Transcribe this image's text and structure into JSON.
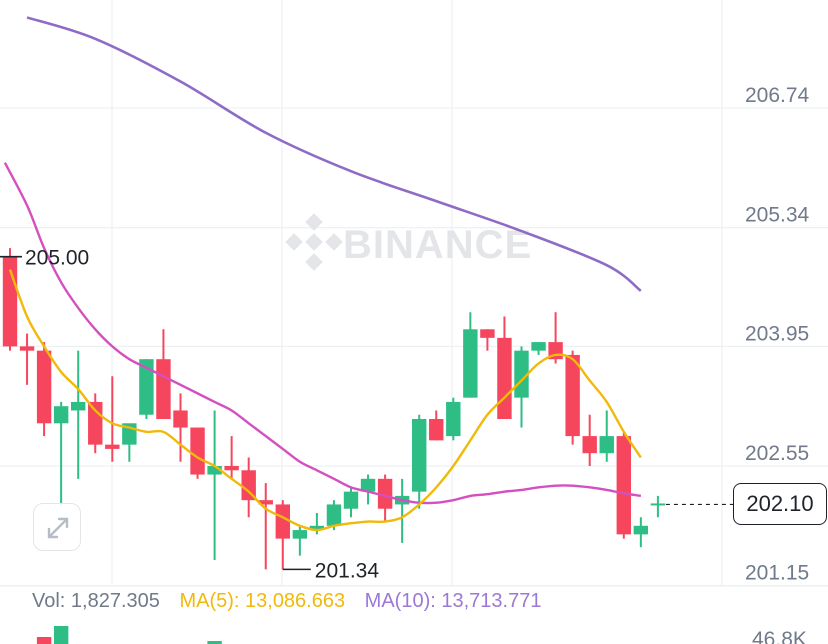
{
  "watermark": {
    "text": "BINANCE"
  },
  "price_axis": {
    "ticks": [
      "206.74",
      "205.34",
      "203.95",
      "202.55",
      "201.15"
    ],
    "volume_tick": "46.8K"
  },
  "annotations": {
    "high_label": "205.00",
    "low_label": "201.34"
  },
  "current_price": {
    "label": "202.10",
    "value": 202.1
  },
  "volume_bar": {
    "vol_label": "Vol: 1,827.305",
    "ma5_label": "MA(5): 13,086.663",
    "ma10_label": "MA(10): 13,713.771"
  },
  "colors": {
    "up": "#2ebd85",
    "down": "#f6465d",
    "ma_fast": "#f0b90b",
    "ma_mid": "#d44fc0",
    "ma_slow": "#8e6cc6",
    "grid": "#eef0f2",
    "vol_text": "#707a8a",
    "ma5_text": "#f0b90b",
    "ma10_text": "#9b78d6"
  },
  "icons": {
    "expand": "expand-icon",
    "logo": "binance-logo-icon"
  },
  "chart_data": {
    "type": "candlestick",
    "ylim": [
      201.0,
      207.6
    ],
    "yticks": [
      206.74,
      205.34,
      203.95,
      202.55,
      201.15
    ],
    "candles": [
      {
        "o": 205.0,
        "h": 205.1,
        "l": 203.9,
        "c": 203.95
      },
      {
        "o": 203.95,
        "h": 204.1,
        "l": 203.5,
        "c": 203.9
      },
      {
        "o": 203.9,
        "h": 204.0,
        "l": 202.9,
        "c": 203.05
      },
      {
        "o": 203.05,
        "h": 203.3,
        "l": 201.6,
        "c": 203.25
      },
      {
        "o": 203.2,
        "h": 203.9,
        "l": 202.4,
        "c": 203.3
      },
      {
        "o": 203.3,
        "h": 203.4,
        "l": 202.7,
        "c": 202.8
      },
      {
        "o": 202.8,
        "h": 203.6,
        "l": 202.6,
        "c": 202.75
      },
      {
        "o": 202.8,
        "h": 203.0,
        "l": 202.6,
        "c": 203.05
      },
      {
        "o": 203.15,
        "h": 203.8,
        "l": 203.1,
        "c": 203.8
      },
      {
        "o": 203.8,
        "h": 204.15,
        "l": 203.1,
        "c": 203.1
      },
      {
        "o": 203.2,
        "h": 203.4,
        "l": 202.6,
        "c": 203.0
      },
      {
        "o": 203.0,
        "h": 203.0,
        "l": 202.4,
        "c": 202.45
      },
      {
        "o": 202.45,
        "h": 203.2,
        "l": 201.45,
        "c": 202.55
      },
      {
        "o": 202.55,
        "h": 202.9,
        "l": 202.4,
        "c": 202.5
      },
      {
        "o": 202.5,
        "h": 202.65,
        "l": 201.95,
        "c": 202.15
      },
      {
        "o": 202.15,
        "h": 202.35,
        "l": 201.34,
        "c": 202.1
      },
      {
        "o": 202.1,
        "h": 202.15,
        "l": 201.34,
        "c": 201.7
      },
      {
        "o": 201.7,
        "h": 201.85,
        "l": 201.5,
        "c": 201.8
      },
      {
        "o": 201.8,
        "h": 202.0,
        "l": 201.75,
        "c": 201.85
      },
      {
        "o": 201.85,
        "h": 202.15,
        "l": 201.8,
        "c": 202.1
      },
      {
        "o": 202.05,
        "h": 202.3,
        "l": 201.95,
        "c": 202.25
      },
      {
        "o": 202.25,
        "h": 202.45,
        "l": 202.1,
        "c": 202.4
      },
      {
        "o": 202.4,
        "h": 202.45,
        "l": 201.9,
        "c": 202.05
      },
      {
        "o": 202.1,
        "h": 202.4,
        "l": 201.65,
        "c": 202.2
      },
      {
        "o": 202.25,
        "h": 203.15,
        "l": 202.05,
        "c": 203.1
      },
      {
        "o": 203.1,
        "h": 203.2,
        "l": 202.85,
        "c": 202.85
      },
      {
        "o": 202.9,
        "h": 203.35,
        "l": 202.85,
        "c": 203.3
      },
      {
        "o": 203.35,
        "h": 204.35,
        "l": 203.35,
        "c": 204.15
      },
      {
        "o": 204.15,
        "h": 204.15,
        "l": 203.9,
        "c": 204.05
      },
      {
        "o": 204.05,
        "h": 204.3,
        "l": 203.1,
        "c": 203.1
      },
      {
        "o": 203.35,
        "h": 203.95,
        "l": 203.0,
        "c": 203.9
      },
      {
        "o": 203.9,
        "h": 204.0,
        "l": 203.85,
        "c": 204.0
      },
      {
        "o": 204.0,
        "h": 204.35,
        "l": 203.75,
        "c": 203.8
      },
      {
        "o": 203.85,
        "h": 203.9,
        "l": 202.8,
        "c": 202.9
      },
      {
        "o": 202.9,
        "h": 203.15,
        "l": 202.55,
        "c": 202.7
      },
      {
        "o": 202.7,
        "h": 203.2,
        "l": 202.6,
        "c": 202.9
      },
      {
        "o": 202.9,
        "h": 202.95,
        "l": 201.7,
        "c": 201.75
      },
      {
        "o": 201.75,
        "h": 201.95,
        "l": 201.6,
        "c": 201.85
      },
      {
        "o": 202.1,
        "h": 202.2,
        "l": 201.95,
        "c": 202.1
      }
    ],
    "ma_fast": [
      [
        0,
        204.85
      ],
      [
        1,
        204.3
      ],
      [
        2,
        203.95
      ],
      [
        3,
        203.65
      ],
      [
        4,
        203.45
      ],
      [
        5,
        203.2
      ],
      [
        6,
        203.05
      ],
      [
        7,
        203.0
      ],
      [
        8,
        202.95
      ],
      [
        9,
        202.95
      ],
      [
        10,
        202.8
      ],
      [
        11,
        202.65
      ],
      [
        12,
        202.55
      ],
      [
        13,
        202.4
      ],
      [
        14,
        202.25
      ],
      [
        15,
        202.05
      ],
      [
        16,
        201.95
      ],
      [
        17,
        201.85
      ],
      [
        18,
        201.8
      ],
      [
        19,
        201.85
      ],
      [
        20,
        201.88
      ],
      [
        21,
        201.9
      ],
      [
        22,
        201.9
      ],
      [
        23,
        201.95
      ],
      [
        24,
        202.1
      ],
      [
        25,
        202.3
      ],
      [
        26,
        202.55
      ],
      [
        27,
        202.85
      ],
      [
        28,
        203.15
      ],
      [
        29,
        203.35
      ],
      [
        30,
        203.55
      ],
      [
        31,
        203.75
      ],
      [
        32,
        203.85
      ],
      [
        33,
        203.8
      ],
      [
        34,
        203.55
      ],
      [
        35,
        203.3
      ],
      [
        36,
        202.95
      ],
      [
        37,
        202.65
      ]
    ],
    "ma_mid": [
      [
        -0.3,
        206.1
      ],
      [
        1,
        205.6
      ],
      [
        2,
        205.1
      ],
      [
        3,
        204.7
      ],
      [
        4,
        204.4
      ],
      [
        5,
        204.15
      ],
      [
        6,
        203.95
      ],
      [
        7,
        203.8
      ],
      [
        8,
        203.7
      ],
      [
        9,
        203.6
      ],
      [
        10,
        203.5
      ],
      [
        11,
        203.4
      ],
      [
        12,
        203.3
      ],
      [
        13,
        203.2
      ],
      [
        14,
        203.05
      ],
      [
        15,
        202.9
      ],
      [
        16,
        202.75
      ],
      [
        17,
        202.6
      ],
      [
        18,
        202.5
      ],
      [
        19,
        202.4
      ],
      [
        20,
        202.3
      ],
      [
        21,
        202.25
      ],
      [
        22,
        202.2
      ],
      [
        23,
        202.15
      ],
      [
        24,
        202.12
      ],
      [
        25,
        202.12
      ],
      [
        26,
        202.15
      ],
      [
        27,
        202.2
      ],
      [
        28,
        202.22
      ],
      [
        29,
        202.25
      ],
      [
        30,
        202.27
      ],
      [
        31,
        202.3
      ],
      [
        32,
        202.32
      ],
      [
        33,
        202.32
      ],
      [
        34,
        202.3
      ],
      [
        35,
        202.27
      ],
      [
        36,
        202.23
      ],
      [
        37,
        202.2
      ]
    ],
    "ma_slow": [
      [
        1,
        207.8
      ],
      [
        5,
        207.55
      ],
      [
        10,
        207.05
      ],
      [
        15,
        206.45
      ],
      [
        20,
        206.0
      ],
      [
        25,
        205.65
      ],
      [
        30,
        205.3
      ],
      [
        35,
        204.9
      ],
      [
        37,
        204.6
      ]
    ],
    "high": 205.0,
    "low": 201.34
  }
}
